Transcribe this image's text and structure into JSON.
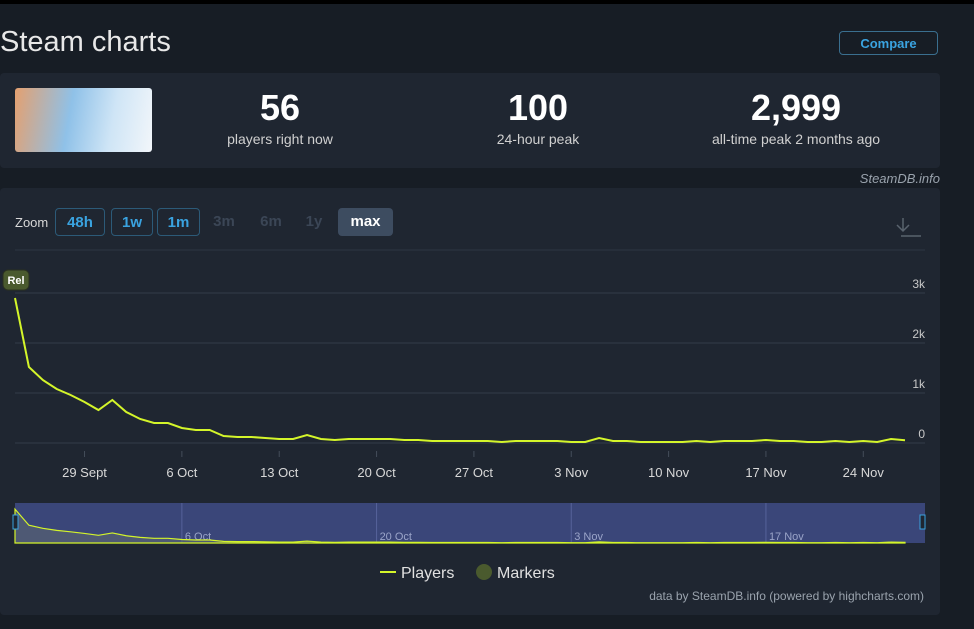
{
  "header": {
    "title": "Steam charts",
    "compare": "Compare"
  },
  "stats": [
    {
      "value": "56",
      "label": "players right now"
    },
    {
      "value": "100",
      "label": "24-hour peak"
    },
    {
      "value": "2,999",
      "label": "all-time peak 2 months ago"
    }
  ],
  "source": "SteamDB.info",
  "zoom": {
    "label": "Zoom",
    "buttons": [
      "48h",
      "1w",
      "1m",
      "3m",
      "6m",
      "1y",
      "max"
    ]
  },
  "chart_data": {
    "type": "line",
    "x": [
      "09-24",
      "09-25",
      "09-26",
      "09-27",
      "09-28",
      "09-29",
      "09-30",
      "10-01",
      "10-02",
      "10-03",
      "10-04",
      "10-05",
      "10-06",
      "10-07",
      "10-08",
      "10-09",
      "10-10",
      "10-11",
      "10-12",
      "10-13",
      "10-14",
      "10-15",
      "10-16",
      "10-17",
      "10-18",
      "10-19",
      "10-20",
      "10-21",
      "10-22",
      "10-23",
      "10-24",
      "10-25",
      "10-26",
      "10-27",
      "10-28",
      "10-29",
      "10-30",
      "10-31",
      "11-01",
      "11-02",
      "11-03",
      "11-04",
      "11-05",
      "11-06",
      "11-07",
      "11-08",
      "11-09",
      "11-10",
      "11-11",
      "11-12",
      "11-13",
      "11-14",
      "11-15",
      "11-16",
      "11-17",
      "11-18",
      "11-19",
      "11-20",
      "11-21",
      "11-22",
      "11-23",
      "11-24",
      "11-25",
      "11-26",
      "11-27"
    ],
    "series": [
      {
        "name": "Players",
        "color": "#d4f52a",
        "values": [
          2900,
          1520,
          1260,
          1080,
          960,
          820,
          660,
          860,
          620,
          480,
          400,
          400,
          300,
          260,
          260,
          140,
          120,
          120,
          100,
          80,
          80,
          160,
          80,
          60,
          80,
          80,
          80,
          80,
          60,
          60,
          40,
          40,
          40,
          40,
          40,
          20,
          40,
          40,
          40,
          40,
          20,
          20,
          100,
          40,
          40,
          20,
          20,
          20,
          20,
          40,
          20,
          40,
          40,
          40,
          60,
          40,
          40,
          20,
          20,
          40,
          20,
          40,
          20,
          80,
          56
        ]
      }
    ],
    "markers": {
      "name": "Markers",
      "color": "#4a5a2e",
      "points": [
        {
          "x": "09-24",
          "label": "Rel"
        }
      ]
    },
    "xlim": [
      "09-24",
      "11-27"
    ],
    "xticks": [
      {
        "value": "09-29",
        "label": "29 Sept"
      },
      {
        "value": "10-06",
        "label": "6 Oct"
      },
      {
        "value": "10-13",
        "label": "13 Oct"
      },
      {
        "value": "10-20",
        "label": "20 Oct"
      },
      {
        "value": "10-27",
        "label": "27 Oct"
      },
      {
        "value": "11-03",
        "label": "3 Nov"
      },
      {
        "value": "11-10",
        "label": "10 Nov"
      },
      {
        "value": "11-17",
        "label": "17 Nov"
      },
      {
        "value": "11-24",
        "label": "24 Nov"
      }
    ],
    "ylim": [
      0,
      3000
    ],
    "yticks": [
      0,
      {
        "value": 1000,
        "label": "1k"
      },
      {
        "value": 2000,
        "label": "2k"
      },
      {
        "value": 3000,
        "label": "3k"
      }
    ],
    "grid": true,
    "navigator": {
      "ticks": [
        {
          "value": "10-06",
          "label": "6 Oct"
        },
        {
          "value": "10-20",
          "label": "20 Oct"
        },
        {
          "value": "11-03",
          "label": "3 Nov"
        },
        {
          "value": "11-17",
          "label": "17 Nov"
        }
      ]
    },
    "credits": "data by SteamDB.info (powered by highcharts.com)"
  }
}
